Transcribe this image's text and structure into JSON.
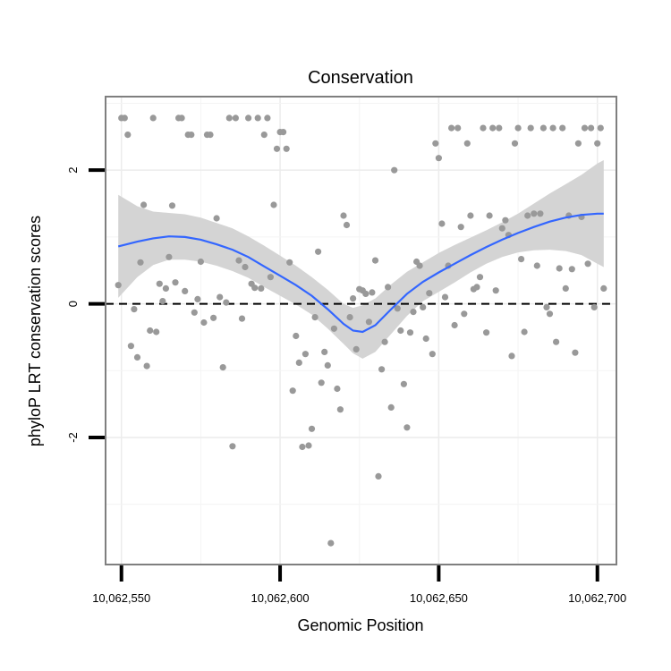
{
  "chart_data": {
    "type": "scatter",
    "title": "Conservation",
    "xlabel": "Genomic Position",
    "ylabel": "phyloP LRT conservation scores",
    "xlim": [
      10062545,
      10062706
    ],
    "ylim": [
      -3.9,
      3.1
    ],
    "x_ticks": [
      10062550,
      10062600,
      10062650,
      10062700
    ],
    "x_tick_labels": [
      "10,062,550",
      "10,062,600",
      "10,062,650",
      "10,062,700"
    ],
    "y_ticks": [
      2,
      0,
      -2
    ],
    "y_tick_labels": [
      "2",
      "0",
      "-2"
    ],
    "grid": true,
    "reference_line": {
      "y": 0,
      "style": "dashed"
    },
    "colors": {
      "points": "#999999",
      "smooth": "#3366ff",
      "band": "#d4d4d4",
      "frame": "#7f7f7f"
    },
    "points": [
      [
        10062549,
        0.28
      ],
      [
        10062550,
        2.78
      ],
      [
        10062551,
        2.78
      ],
      [
        10062552,
        2.53
      ],
      [
        10062553,
        -0.63
      ],
      [
        10062554,
        -0.08
      ],
      [
        10062555,
        -0.8
      ],
      [
        10062556,
        0.62
      ],
      [
        10062557,
        1.48
      ],
      [
        10062558,
        -0.93
      ],
      [
        10062559,
        -0.4
      ],
      [
        10062560,
        2.78
      ],
      [
        10062561,
        -0.42
      ],
      [
        10062562,
        0.3
      ],
      [
        10062563,
        0.04
      ],
      [
        10062564,
        0.23
      ],
      [
        10062565,
        0.7
      ],
      [
        10062566,
        1.47
      ],
      [
        10062567,
        0.32
      ],
      [
        10062568,
        2.78
      ],
      [
        10062569,
        2.78
      ],
      [
        10062570,
        0.19
      ],
      [
        10062571,
        2.53
      ],
      [
        10062572,
        2.53
      ],
      [
        10062573,
        -0.13
      ],
      [
        10062574,
        0.07
      ],
      [
        10062575,
        0.63
      ],
      [
        10062576,
        -0.28
      ],
      [
        10062577,
        2.53
      ],
      [
        10062578,
        2.53
      ],
      [
        10062579,
        -0.21
      ],
      [
        10062580,
        1.28
      ],
      [
        10062581,
        0.1
      ],
      [
        10062582,
        -0.95
      ],
      [
        10062583,
        0.02
      ],
      [
        10062584,
        2.78
      ],
      [
        10062585,
        -2.13
      ],
      [
        10062586,
        2.78
      ],
      [
        10062587,
        0.65
      ],
      [
        10062588,
        -0.22
      ],
      [
        10062589,
        0.55
      ],
      [
        10062590,
        2.78
      ],
      [
        10062591,
        0.3
      ],
      [
        10062592,
        0.24
      ],
      [
        10062593,
        2.78
      ],
      [
        10062594,
        0.23
      ],
      [
        10062595,
        2.53
      ],
      [
        10062596,
        2.78
      ],
      [
        10062597,
        0.4
      ],
      [
        10062598,
        1.48
      ],
      [
        10062599,
        2.32
      ],
      [
        10062600,
        2.57
      ],
      [
        10062601,
        2.57
      ],
      [
        10062602,
        2.32
      ],
      [
        10062603,
        0.62
      ],
      [
        10062604,
        -1.3
      ],
      [
        10062605,
        -0.48
      ],
      [
        10062606,
        -0.88
      ],
      [
        10062607,
        -2.14
      ],
      [
        10062608,
        -0.75
      ],
      [
        10062609,
        -2.12
      ],
      [
        10062610,
        -1.87
      ],
      [
        10062611,
        -0.2
      ],
      [
        10062612,
        0.78
      ],
      [
        10062613,
        -1.18
      ],
      [
        10062614,
        -0.72
      ],
      [
        10062615,
        -0.92
      ],
      [
        10062616,
        -3.58
      ],
      [
        10062617,
        -0.37
      ],
      [
        10062618,
        -1.27
      ],
      [
        10062619,
        -1.58
      ],
      [
        10062620,
        1.32
      ],
      [
        10062621,
        1.18
      ],
      [
        10062622,
        -0.2
      ],
      [
        10062623,
        0.08
      ],
      [
        10062624,
        -0.68
      ],
      [
        10062625,
        0.22
      ],
      [
        10062626,
        0.2
      ],
      [
        10062627,
        0.15
      ],
      [
        10062628,
        -0.27
      ],
      [
        10062629,
        0.17
      ],
      [
        10062630,
        0.65
      ],
      [
        10062631,
        -2.58
      ],
      [
        10062632,
        -0.98
      ],
      [
        10062633,
        -0.57
      ],
      [
        10062634,
        0.25
      ],
      [
        10062635,
        -1.55
      ],
      [
        10062636,
        2.0
      ],
      [
        10062637,
        -0.07
      ],
      [
        10062638,
        -0.4
      ],
      [
        10062639,
        -1.2
      ],
      [
        10062640,
        -1.85
      ],
      [
        10062641,
        -0.43
      ],
      [
        10062642,
        -0.12
      ],
      [
        10062643,
        0.63
      ],
      [
        10062644,
        0.57
      ],
      [
        10062645,
        -0.05
      ],
      [
        10062646,
        -0.52
      ],
      [
        10062647,
        0.16
      ],
      [
        10062648,
        -0.75
      ],
      [
        10062649,
        2.4
      ],
      [
        10062650,
        2.18
      ],
      [
        10062651,
        1.2
      ],
      [
        10062652,
        0.1
      ],
      [
        10062653,
        0.57
      ],
      [
        10062654,
        2.63
      ],
      [
        10062655,
        -0.32
      ],
      [
        10062656,
        2.63
      ],
      [
        10062657,
        1.15
      ],
      [
        10062658,
        -0.15
      ],
      [
        10062659,
        2.4
      ],
      [
        10062660,
        1.32
      ],
      [
        10062661,
        0.22
      ],
      [
        10062662,
        0.25
      ],
      [
        10062663,
        0.4
      ],
      [
        10062664,
        2.63
      ],
      [
        10062665,
        -0.43
      ],
      [
        10062666,
        1.32
      ],
      [
        10062667,
        2.63
      ],
      [
        10062668,
        0.2
      ],
      [
        10062669,
        2.63
      ],
      [
        10062670,
        1.13
      ],
      [
        10062671,
        1.25
      ],
      [
        10062672,
        1.03
      ],
      [
        10062673,
        -0.78
      ],
      [
        10062674,
        2.4
      ],
      [
        10062675,
        2.63
      ],
      [
        10062676,
        0.67
      ],
      [
        10062677,
        -0.42
      ],
      [
        10062678,
        1.32
      ],
      [
        10062679,
        2.63
      ],
      [
        10062680,
        1.35
      ],
      [
        10062681,
        0.57
      ],
      [
        10062682,
        1.35
      ],
      [
        10062683,
        2.63
      ],
      [
        10062684,
        -0.05
      ],
      [
        10062685,
        -0.15
      ],
      [
        10062686,
        2.63
      ],
      [
        10062687,
        -0.57
      ],
      [
        10062688,
        0.53
      ],
      [
        10062689,
        2.63
      ],
      [
        10062690,
        0.23
      ],
      [
        10062691,
        1.32
      ],
      [
        10062692,
        0.52
      ],
      [
        10062693,
        -0.73
      ],
      [
        10062694,
        2.4
      ],
      [
        10062695,
        1.3
      ],
      [
        10062696,
        2.63
      ],
      [
        10062697,
        0.6
      ],
      [
        10062698,
        2.63
      ],
      [
        10062699,
        -0.05
      ],
      [
        10062700,
        2.4
      ],
      [
        10062701,
        2.63
      ],
      [
        10062702,
        0.23
      ]
    ],
    "smooth": {
      "x": [
        10062549,
        10062555,
        10062560,
        10062565,
        10062570,
        10062575,
        10062580,
        10062585,
        10062590,
        10062595,
        10062600,
        10062605,
        10062610,
        10062615,
        10062620,
        10062623,
        10062626,
        10062630,
        10062635,
        10062640,
        10062645,
        10062650,
        10062655,
        10062660,
        10062665,
        10062670,
        10062675,
        10062680,
        10062685,
        10062690,
        10062695,
        10062700,
        10062702
      ],
      "y": [
        0.86,
        0.93,
        0.98,
        1.01,
        1.0,
        0.96,
        0.89,
        0.81,
        0.7,
        0.56,
        0.42,
        0.28,
        0.12,
        -0.08,
        -0.3,
        -0.4,
        -0.42,
        -0.32,
        -0.08,
        0.15,
        0.33,
        0.47,
        0.6,
        0.73,
        0.85,
        0.96,
        1.06,
        1.15,
        1.23,
        1.29,
        1.33,
        1.35,
        1.35
      ],
      "lower": [
        0.09,
        0.4,
        0.58,
        0.66,
        0.66,
        0.63,
        0.57,
        0.49,
        0.39,
        0.25,
        0.12,
        -0.01,
        -0.16,
        -0.37,
        -0.6,
        -0.74,
        -0.82,
        -0.72,
        -0.45,
        -0.18,
        0.04,
        0.18,
        0.32,
        0.47,
        0.6,
        0.7,
        0.77,
        0.8,
        0.81,
        0.79,
        0.73,
        0.6,
        0.55
      ],
      "upper": [
        1.63,
        1.46,
        1.38,
        1.36,
        1.34,
        1.29,
        1.21,
        1.13,
        1.01,
        0.87,
        0.72,
        0.57,
        0.4,
        0.21,
        0.0,
        -0.06,
        -0.02,
        0.08,
        0.29,
        0.48,
        0.62,
        0.76,
        0.88,
        0.99,
        1.1,
        1.22,
        1.35,
        1.5,
        1.65,
        1.79,
        1.93,
        2.1,
        2.15
      ]
    }
  }
}
